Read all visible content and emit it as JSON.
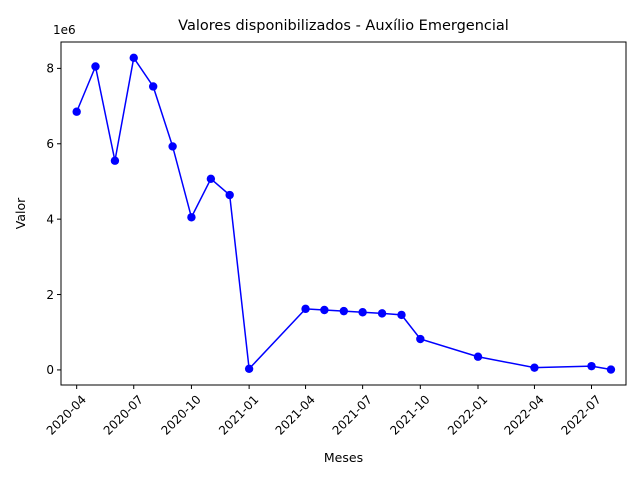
{
  "chart_data": {
    "type": "line",
    "title": "Valores disponibilizados - Auxílio Emergencial",
    "xlabel": "Meses",
    "ylabel": "Valor",
    "y_offset_label": "1e6",
    "y_scale_factor": 1000000,
    "series_color": "#0000ff",
    "ylim": [
      -400000,
      8700000
    ],
    "xlim": [
      "2020-03-07",
      "2022-08-25"
    ],
    "y_ticks": [
      0,
      2000000,
      4000000,
      6000000,
      8000000
    ],
    "y_tick_labels": [
      "0",
      "2",
      "4",
      "6",
      "8"
    ],
    "x_ticks": [
      "2020-04-01",
      "2020-07-01",
      "2020-10-01",
      "2021-01-01",
      "2021-04-01",
      "2021-07-01",
      "2021-10-01",
      "2022-01-01",
      "2022-04-01",
      "2022-07-01"
    ],
    "x_tick_labels": [
      "2020-04",
      "2020-07",
      "2020-10",
      "2021-01",
      "2021-04",
      "2021-07",
      "2021-10",
      "2022-01",
      "2022-04",
      "2022-07"
    ],
    "grid": false,
    "series": [
      {
        "x": [
          "2020-04-01",
          "2020-05-01",
          "2020-06-01",
          "2020-07-01",
          "2020-08-01",
          "2020-09-01",
          "2020-10-01",
          "2020-11-01",
          "2020-12-01",
          "2021-01-01",
          "2021-04-01",
          "2021-05-01",
          "2021-06-01",
          "2021-07-01",
          "2021-08-01",
          "2021-09-01",
          "2021-10-01",
          "2022-01-01",
          "2022-04-01",
          "2022-07-01",
          "2022-08-01"
        ],
        "values": [
          6850000,
          8050000,
          5550000,
          8280000,
          7520000,
          5930000,
          4050000,
          5070000,
          4640000,
          30000,
          1620000,
          1590000,
          1560000,
          1530000,
          1500000,
          1460000,
          820000,
          350000,
          60000,
          100000,
          10000
        ]
      }
    ]
  }
}
